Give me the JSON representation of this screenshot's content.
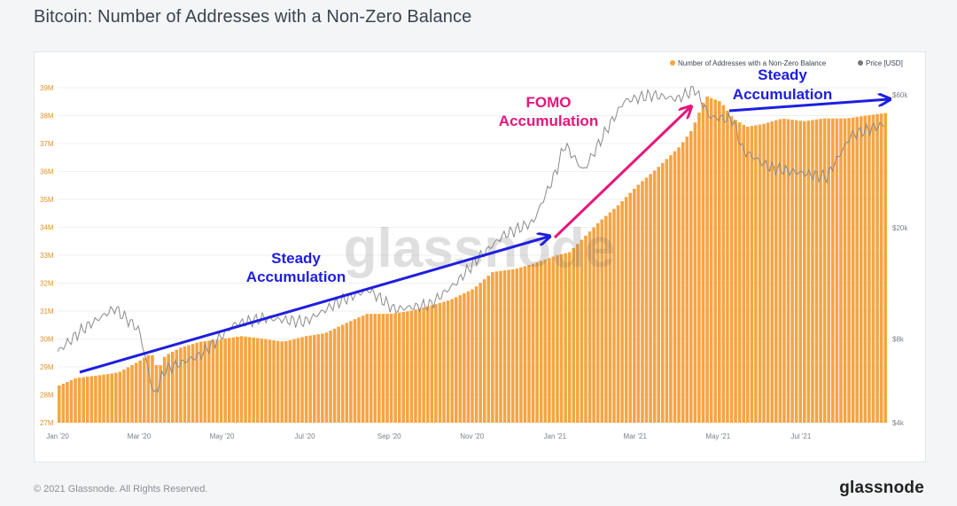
{
  "title": "Bitcoin: Number of Addresses with a Non-Zero Balance",
  "footer": {
    "copyright": "© 2021 Glassnode. All Rights Reserved.",
    "brand": "glassnode"
  },
  "watermark": "glassnode",
  "colors": {
    "bars": "#f5a443",
    "price": "#8a8a8a",
    "steady_arrow": "#1e1ee0",
    "fomo_arrow": "#e5177a"
  },
  "annotations": {
    "steady_1_line1": "Steady",
    "steady_1_line2": "Accumulation",
    "fomo_line1": "FOMO",
    "fomo_line2": "Accumulation",
    "steady_2_line1": "Steady",
    "steady_2_line2": "Accumulation"
  },
  "chart_data": {
    "type": "bar",
    "legend": [
      "Number of Addresses with a Non-Zero Balance",
      "Price [USD]"
    ],
    "legend_position": "top-right",
    "x_ticks": [
      "Jan '20",
      "Mar '20",
      "May '20",
      "Jul '20",
      "Sep '20",
      "Nov '20",
      "Jan '21",
      "Mar '21",
      "May '21",
      "Jul '21"
    ],
    "y_left_ticks": [
      "27M",
      "28M",
      "29M",
      "30M",
      "31M",
      "32M",
      "33M",
      "34M",
      "35M",
      "36M",
      "37M",
      "38M",
      "39M"
    ],
    "y_left_range": [
      27000000,
      39000000
    ],
    "y_right_ticks": [
      "$4k",
      "$8k",
      "$20k",
      "$60k"
    ],
    "y_right_scale": "log",
    "grid": true,
    "series": [
      {
        "name": "Number of Addresses with a Non-Zero Balance",
        "kind": "bar",
        "unit": "addresses (millions)",
        "x": [
          "2020-01-01",
          "2020-01-15",
          "2020-02-01",
          "2020-02-15",
          "2020-03-01",
          "2020-03-10",
          "2020-03-15",
          "2020-03-20",
          "2020-04-01",
          "2020-04-15",
          "2020-05-01",
          "2020-05-15",
          "2020-06-01",
          "2020-06-15",
          "2020-07-01",
          "2020-07-15",
          "2020-08-01",
          "2020-08-15",
          "2020-09-01",
          "2020-09-15",
          "2020-10-01",
          "2020-10-15",
          "2020-11-01",
          "2020-11-15",
          "2020-12-01",
          "2020-12-15",
          "2021-01-01",
          "2021-01-10",
          "2021-01-20",
          "2021-02-01",
          "2021-02-15",
          "2021-03-01",
          "2021-03-15",
          "2021-04-01",
          "2021-04-10",
          "2021-04-15",
          "2021-04-20",
          "2021-05-01",
          "2021-05-10",
          "2021-05-20",
          "2021-06-01",
          "2021-06-15",
          "2021-07-01",
          "2021-07-15",
          "2021-08-01",
          "2021-08-15",
          "2021-08-31"
        ],
        "values": [
          28.3,
          28.6,
          28.7,
          28.8,
          29.2,
          29.5,
          28.9,
          29.4,
          29.7,
          29.9,
          30.0,
          30.1,
          30.0,
          29.9,
          30.1,
          30.2,
          30.6,
          30.9,
          30.9,
          31.0,
          31.2,
          31.4,
          31.8,
          32.4,
          32.5,
          32.7,
          33.0,
          33.1,
          33.6,
          34.2,
          34.8,
          35.5,
          36.1,
          36.9,
          37.5,
          38.1,
          38.7,
          38.5,
          37.9,
          37.6,
          37.7,
          37.9,
          37.8,
          37.9,
          37.9,
          38.0,
          38.1
        ]
      },
      {
        "name": "Price [USD]",
        "kind": "line",
        "unit": "USD",
        "x": [
          "2020-01-01",
          "2020-01-20",
          "2020-02-12",
          "2020-03-01",
          "2020-03-12",
          "2020-03-20",
          "2020-04-15",
          "2020-05-10",
          "2020-06-01",
          "2020-07-01",
          "2020-07-28",
          "2020-08-17",
          "2020-09-05",
          "2020-10-01",
          "2020-10-21",
          "2020-11-05",
          "2020-11-24",
          "2020-12-16",
          "2021-01-02",
          "2021-01-08",
          "2021-01-22",
          "2021-02-08",
          "2021-02-21",
          "2021-03-13",
          "2021-04-01",
          "2021-04-14",
          "2021-04-25",
          "2021-05-12",
          "2021-05-19",
          "2021-06-08",
          "2021-06-22",
          "2021-07-20",
          "2021-08-07",
          "2021-08-31"
        ],
        "values": [
          7200,
          8700,
          10300,
          8600,
          5000,
          6200,
          7000,
          9000,
          9500,
          9200,
          11000,
          12000,
          10200,
          10600,
          12800,
          15500,
          18800,
          21000,
          32000,
          40000,
          32000,
          45000,
          57000,
          60000,
          58000,
          63000,
          50000,
          49000,
          38000,
          33000,
          32000,
          30500,
          43000,
          47000
        ]
      }
    ]
  }
}
